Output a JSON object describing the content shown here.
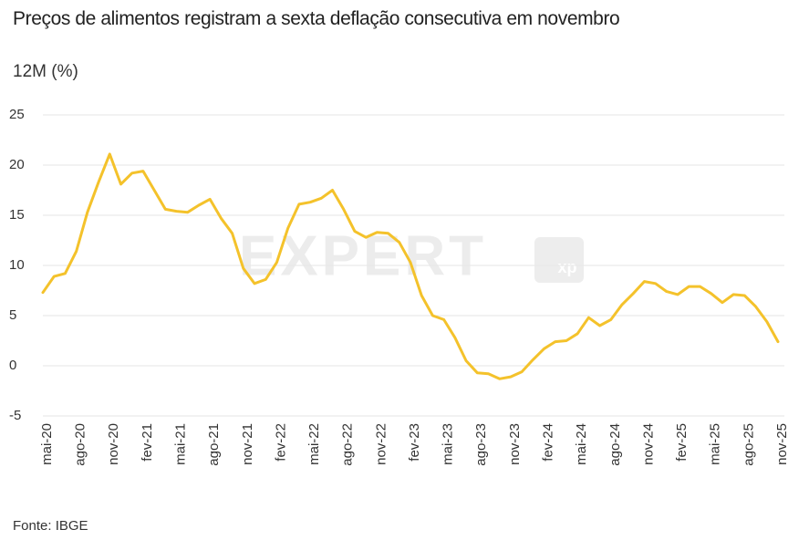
{
  "chart_data": {
    "type": "line",
    "title": "Preços de alimentos registram a sexta deflação consecutiva em novembro",
    "subtitle": "12M (%)",
    "source": "Fonte: IBGE",
    "watermark": "EXPERT",
    "watermark_badge": "xp",
    "categories": [
      "mai-20",
      null,
      null,
      "ago-20",
      null,
      null,
      "nov-20",
      null,
      null,
      "fev-21",
      null,
      null,
      "mai-21",
      null,
      null,
      "ago-21",
      null,
      null,
      "nov-21",
      null,
      null,
      "fev-22",
      null,
      null,
      "mai-22",
      null,
      null,
      "ago-22",
      null,
      null,
      "nov-22",
      null,
      null,
      "fev-23",
      null,
      null,
      "mai-23",
      null,
      null,
      "ago-23",
      null,
      null,
      "nov-23",
      null,
      null,
      "fev-24",
      null,
      null,
      "mai-24",
      null,
      null,
      "ago-24",
      null,
      null,
      "nov-24",
      null,
      null,
      "fev-25",
      null,
      null,
      "mai-25",
      null,
      null,
      "ago-25",
      null,
      null,
      "nov-25"
    ],
    "series": [
      {
        "name": "12M (%)",
        "color": "#f4c22b",
        "values": [
          7.3,
          8.9,
          9.2,
          11.4,
          15.3,
          18.3,
          21.1,
          18.1,
          19.2,
          19.4,
          17.5,
          15.6,
          15.4,
          15.3,
          16.0,
          16.6,
          14.7,
          13.2,
          9.7,
          8.2,
          8.6,
          10.3,
          13.7,
          16.1,
          16.3,
          16.7,
          17.5,
          15.6,
          13.4,
          12.8,
          13.3,
          13.2,
          12.3,
          10.3,
          7.0,
          5.0,
          4.6,
          2.8,
          0.5,
          -0.7,
          -0.8,
          -1.3,
          -1.1,
          -0.6,
          0.6,
          1.7,
          2.4,
          2.5,
          3.2,
          4.8,
          4.0,
          4.6,
          6.1,
          7.2,
          8.4,
          8.2,
          7.4,
          7.1,
          7.9,
          7.9,
          7.2,
          6.3,
          7.1,
          7.0,
          5.9,
          4.4,
          2.4
        ]
      }
    ],
    "ylim": [
      -5,
      25
    ],
    "yticks": [
      -5,
      0,
      5,
      10,
      15,
      20,
      25
    ],
    "grid": true
  }
}
